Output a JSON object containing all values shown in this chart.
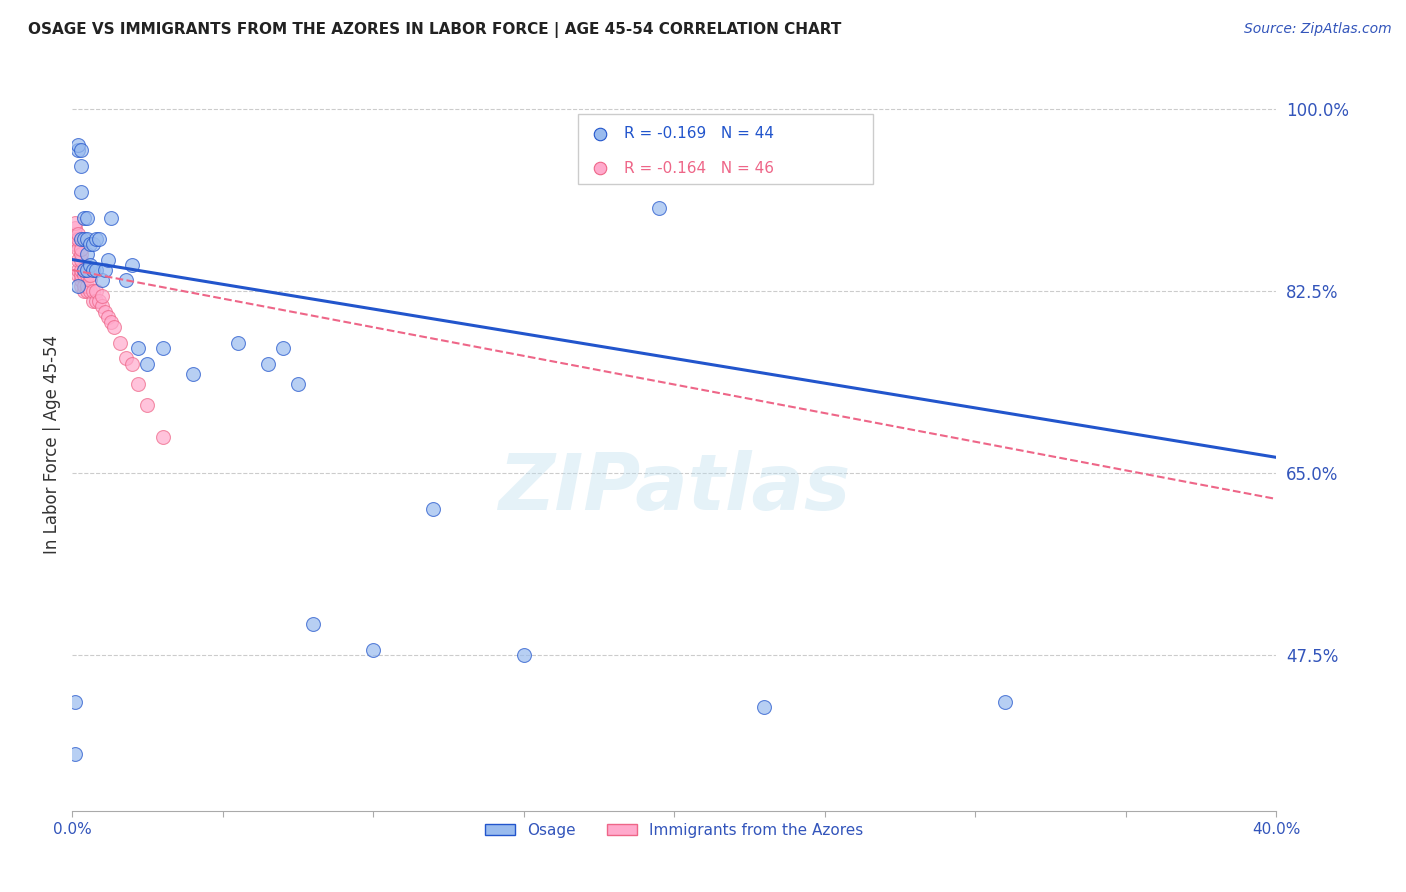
{
  "title": "OSAGE VS IMMIGRANTS FROM THE AZORES IN LABOR FORCE | AGE 45-54 CORRELATION CHART",
  "source": "Source: ZipAtlas.com",
  "ylabel": "In Labor Force | Age 45-54",
  "xlim": [
    0.0,
    0.4
  ],
  "ylim": [
    0.325,
    1.03
  ],
  "xticks": [
    0.0,
    0.05,
    0.1,
    0.15,
    0.2,
    0.25,
    0.3,
    0.35,
    0.4
  ],
  "xtick_labels": [
    "0.0%",
    "",
    "",
    "",
    "",
    "",
    "",
    "",
    "40.0%"
  ],
  "ytick_labels_right": [
    "100.0%",
    "82.5%",
    "65.0%",
    "47.5%"
  ],
  "yticks_right": [
    1.0,
    0.825,
    0.65,
    0.475
  ],
  "grid_color": "#cccccc",
  "background_color": "#ffffff",
  "watermark": "ZIPatlas",
  "legend_r1": "R = -0.169",
  "legend_n1": "N = 44",
  "legend_r2": "R = -0.164",
  "legend_n2": "N = 46",
  "series1_color": "#99bbee",
  "series2_color": "#ffaacc",
  "trend1_color": "#2255cc",
  "trend2_color": "#ee6688",
  "axis_color": "#3355bb",
  "osage_x": [
    0.001,
    0.001,
    0.002,
    0.002,
    0.002,
    0.003,
    0.003,
    0.003,
    0.003,
    0.004,
    0.004,
    0.004,
    0.005,
    0.005,
    0.005,
    0.005,
    0.006,
    0.006,
    0.007,
    0.007,
    0.008,
    0.008,
    0.009,
    0.01,
    0.011,
    0.012,
    0.013,
    0.018,
    0.02,
    0.022,
    0.025,
    0.03,
    0.04,
    0.055,
    0.065,
    0.07,
    0.075,
    0.08,
    0.1,
    0.12,
    0.15,
    0.195,
    0.23,
    0.31
  ],
  "osage_y": [
    0.38,
    0.43,
    0.96,
    0.965,
    0.83,
    0.875,
    0.92,
    0.945,
    0.96,
    0.845,
    0.875,
    0.895,
    0.845,
    0.86,
    0.875,
    0.895,
    0.85,
    0.87,
    0.845,
    0.87,
    0.845,
    0.875,
    0.875,
    0.835,
    0.845,
    0.855,
    0.895,
    0.835,
    0.85,
    0.77,
    0.755,
    0.77,
    0.745,
    0.775,
    0.755,
    0.77,
    0.735,
    0.505,
    0.48,
    0.615,
    0.475,
    0.905,
    0.425,
    0.43
  ],
  "azores_x": [
    0.001,
    0.001,
    0.001,
    0.001,
    0.001,
    0.002,
    0.002,
    0.002,
    0.002,
    0.002,
    0.002,
    0.003,
    0.003,
    0.003,
    0.003,
    0.003,
    0.003,
    0.003,
    0.004,
    0.004,
    0.004,
    0.004,
    0.005,
    0.005,
    0.005,
    0.005,
    0.006,
    0.006,
    0.006,
    0.007,
    0.007,
    0.008,
    0.008,
    0.009,
    0.01,
    0.01,
    0.011,
    0.012,
    0.013,
    0.014,
    0.016,
    0.018,
    0.02,
    0.022,
    0.025,
    0.03
  ],
  "azores_y": [
    0.87,
    0.875,
    0.88,
    0.885,
    0.89,
    0.84,
    0.845,
    0.855,
    0.865,
    0.875,
    0.88,
    0.83,
    0.835,
    0.84,
    0.845,
    0.855,
    0.86,
    0.865,
    0.825,
    0.83,
    0.84,
    0.845,
    0.825,
    0.83,
    0.84,
    0.845,
    0.825,
    0.835,
    0.84,
    0.815,
    0.825,
    0.815,
    0.825,
    0.815,
    0.81,
    0.82,
    0.805,
    0.8,
    0.795,
    0.79,
    0.775,
    0.76,
    0.755,
    0.735,
    0.715,
    0.685
  ],
  "osage_trend_x": [
    0.0,
    0.4
  ],
  "osage_trend_y": [
    0.855,
    0.665
  ],
  "azores_trend_x": [
    0.0,
    0.4
  ],
  "azores_trend_y": [
    0.845,
    0.625
  ]
}
